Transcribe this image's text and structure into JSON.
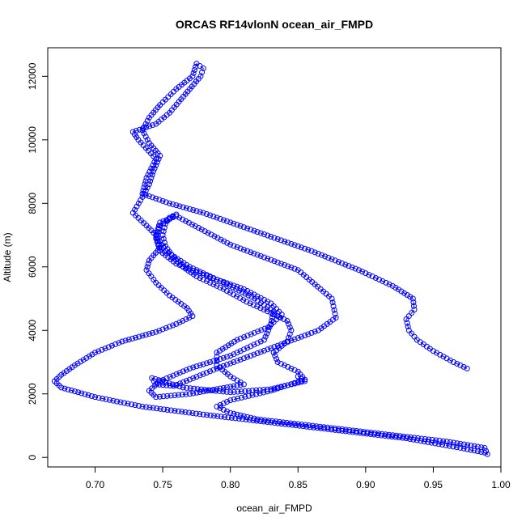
{
  "chart_data": {
    "type": "scatter",
    "title": "ORCAS RF14vlonN ocean_air_FMPD",
    "xlabel": "ocean_air_FMPD",
    "ylabel": "Altitude (m)",
    "xlim": [
      0.665,
      1.0
    ],
    "ylim": [
      -300,
      12900
    ],
    "x_ticks": [
      0.7,
      0.75,
      0.8,
      0.85,
      0.9,
      0.95,
      1.0
    ],
    "x_tick_labels": [
      "0.70",
      "0.75",
      "0.80",
      "0.85",
      "0.90",
      "0.95",
      "1.00"
    ],
    "y_ticks": [
      0,
      2000,
      4000,
      6000,
      8000,
      10000,
      12000
    ],
    "y_tick_labels": [
      "0",
      "2000",
      "4000",
      "6000",
      "8000",
      "10000",
      "12000"
    ],
    "grid": false,
    "series": [
      {
        "color": "#0000ff",
        "marker": "open-circle",
        "line": "dashed",
        "points": [
          [
            0.975,
            2800
          ],
          [
            0.965,
            3000
          ],
          [
            0.95,
            3350
          ],
          [
            0.938,
            3700
          ],
          [
            0.932,
            4000
          ],
          [
            0.93,
            4350
          ],
          [
            0.936,
            4650
          ],
          [
            0.935,
            5000
          ],
          [
            0.92,
            5400
          ],
          [
            0.895,
            5900
          ],
          [
            0.86,
            6500
          ],
          [
            0.82,
            7100
          ],
          [
            0.78,
            7700
          ],
          [
            0.755,
            8000
          ],
          [
            0.735,
            8300
          ],
          [
            0.738,
            8800
          ],
          [
            0.745,
            9400
          ],
          [
            0.732,
            10000
          ],
          [
            0.728,
            10250
          ],
          [
            0.745,
            10500
          ],
          [
            0.755,
            10850
          ],
          [
            0.762,
            11200
          ],
          [
            0.77,
            11600
          ],
          [
            0.778,
            12000
          ],
          [
            0.78,
            12250
          ],
          [
            0.775,
            12400
          ],
          [
            0.772,
            12000
          ],
          [
            0.76,
            11600
          ],
          [
            0.748,
            11100
          ],
          [
            0.74,
            10700
          ],
          [
            0.735,
            10300
          ],
          [
            0.74,
            9900
          ],
          [
            0.748,
            9500
          ],
          [
            0.743,
            9000
          ],
          [
            0.74,
            8600
          ],
          [
            0.735,
            8200
          ],
          [
            0.728,
            7700
          ],
          [
            0.738,
            7300
          ],
          [
            0.745,
            7000
          ],
          [
            0.748,
            6600
          ],
          [
            0.74,
            6200
          ],
          [
            0.738,
            5900
          ],
          [
            0.745,
            5500
          ],
          [
            0.755,
            5100
          ],
          [
            0.768,
            4700
          ],
          [
            0.772,
            4450
          ],
          [
            0.76,
            4200
          ],
          [
            0.745,
            3950
          ],
          [
            0.72,
            3650
          ],
          [
            0.7,
            3300
          ],
          [
            0.685,
            2900
          ],
          [
            0.675,
            2600
          ],
          [
            0.67,
            2400
          ],
          [
            0.675,
            2200
          ],
          [
            0.7,
            1900
          ],
          [
            0.735,
            1600
          ],
          [
            0.78,
            1350
          ],
          [
            0.83,
            1100
          ],
          [
            0.88,
            850
          ],
          [
            0.93,
            600
          ],
          [
            0.97,
            300
          ],
          [
            0.988,
            150
          ],
          [
            0.99,
            100
          ],
          [
            0.988,
            300
          ],
          [
            0.96,
            500
          ],
          [
            0.92,
            700
          ],
          [
            0.88,
            900
          ],
          [
            0.85,
            1050
          ],
          [
            0.82,
            1200
          ],
          [
            0.8,
            1400
          ],
          [
            0.79,
            1600
          ],
          [
            0.8,
            1800
          ],
          [
            0.83,
            2100
          ],
          [
            0.855,
            2450
          ],
          [
            0.85,
            2700
          ],
          [
            0.835,
            3000
          ],
          [
            0.832,
            3300
          ],
          [
            0.842,
            3650
          ],
          [
            0.845,
            4000
          ],
          [
            0.842,
            4300
          ],
          [
            0.83,
            4550
          ],
          [
            0.812,
            4900
          ],
          [
            0.795,
            5300
          ],
          [
            0.775,
            5700
          ],
          [
            0.765,
            6000
          ],
          [
            0.758,
            6300
          ],
          [
            0.752,
            6650
          ],
          [
            0.75,
            7000
          ],
          [
            0.752,
            7350
          ],
          [
            0.755,
            7550
          ],
          [
            0.76,
            7650
          ],
          [
            0.748,
            7300
          ],
          [
            0.745,
            6900
          ],
          [
            0.748,
            6500
          ],
          [
            0.76,
            6100
          ],
          [
            0.78,
            5750
          ],
          [
            0.81,
            5300
          ],
          [
            0.83,
            4850
          ],
          [
            0.838,
            4500
          ],
          [
            0.828,
            4100
          ],
          [
            0.805,
            3700
          ],
          [
            0.79,
            3300
          ],
          [
            0.79,
            2900
          ],
          [
            0.8,
            2550
          ],
          [
            0.81,
            2300
          ],
          [
            0.79,
            2150
          ],
          [
            0.77,
            2000
          ],
          [
            0.745,
            1900
          ],
          [
            0.74,
            2100
          ],
          [
            0.748,
            2400
          ],
          [
            0.77,
            2800
          ],
          [
            0.8,
            3200
          ],
          [
            0.825,
            3700
          ],
          [
            0.83,
            4200
          ],
          [
            0.832,
            4600
          ],
          [
            0.818,
            5000
          ],
          [
            0.795,
            5500
          ],
          [
            0.77,
            6000
          ],
          [
            0.752,
            6500
          ],
          [
            0.745,
            7000
          ],
          [
            0.748,
            7400
          ],
          [
            0.76,
            7600
          ],
          [
            0.8,
            6700
          ],
          [
            0.85,
            5900
          ],
          [
            0.875,
            5000
          ],
          [
            0.878,
            4400
          ],
          [
            0.865,
            4000
          ],
          [
            0.84,
            3600
          ],
          [
            0.815,
            3200
          ],
          [
            0.79,
            2800
          ],
          [
            0.77,
            2450
          ],
          [
            0.758,
            2250
          ],
          [
            0.745,
            2300
          ],
          [
            0.742,
            2500
          ],
          [
            0.765,
            2200
          ],
          [
            0.8,
            2050
          ],
          [
            0.83,
            2150
          ],
          [
            0.855,
            2400
          ],
          [
            0.85,
            2550
          ]
        ]
      }
    ]
  }
}
